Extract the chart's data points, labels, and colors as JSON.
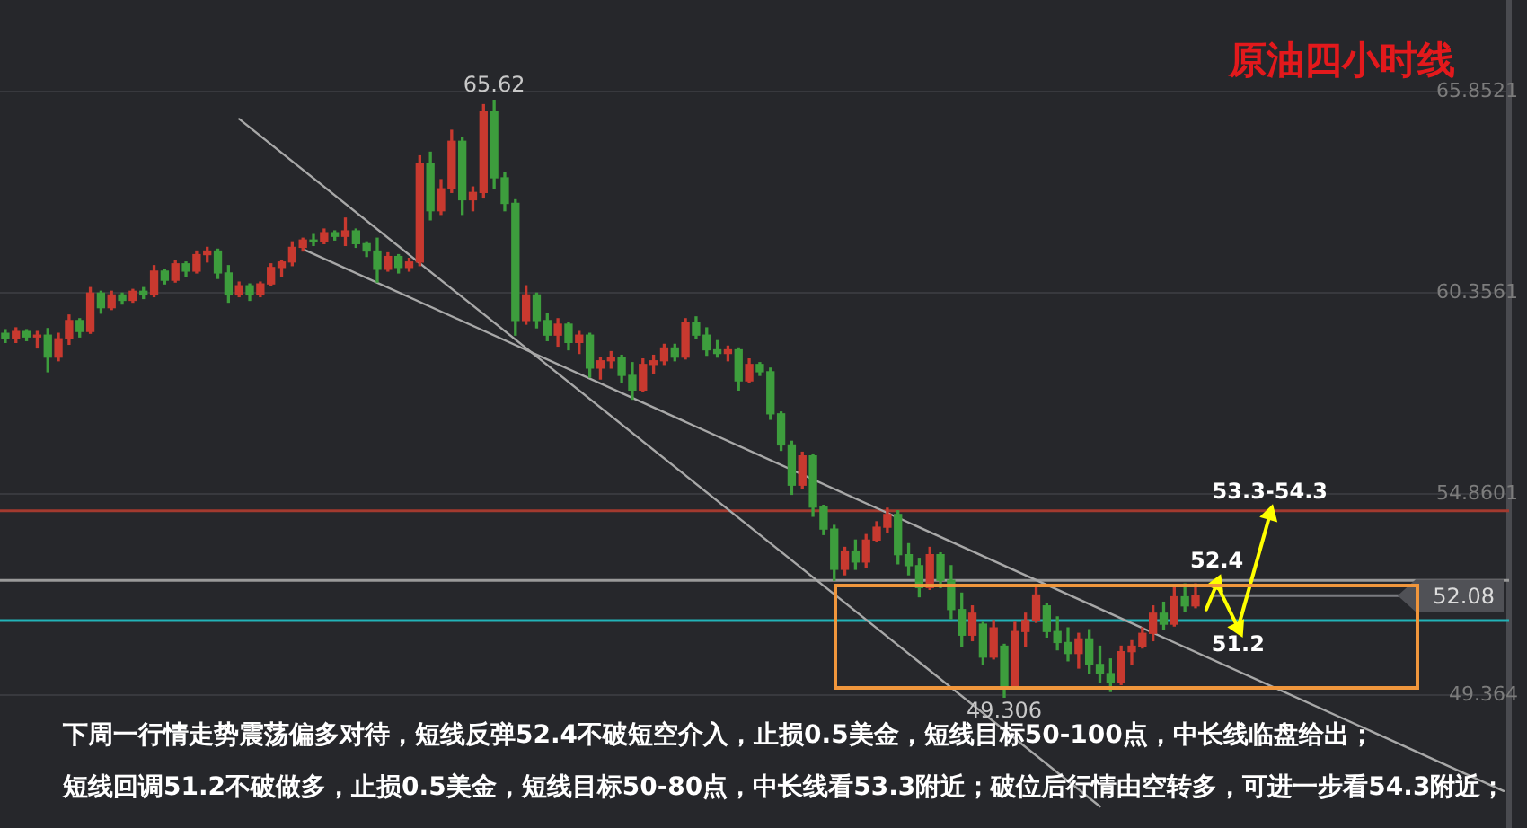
{
  "chart_data": {
    "type": "candlestick",
    "title": "原油四小时线",
    "categories": [
      null,
      null,
      null,
      null,
      null,
      null,
      null,
      null,
      null,
      null,
      null,
      null,
      null,
      null,
      null,
      null,
      null,
      null,
      null,
      null,
      null,
      null,
      null,
      null,
      null,
      null,
      null,
      null,
      null,
      null,
      null,
      null,
      null,
      null,
      null,
      null,
      null,
      null,
      null,
      null,
      null,
      null,
      null,
      null,
      null,
      null,
      null,
      null,
      null,
      null,
      null,
      null,
      null,
      null,
      null,
      null,
      null,
      null,
      null,
      null,
      null,
      null,
      null,
      null,
      null,
      null,
      null,
      null,
      null,
      null,
      null,
      null,
      null,
      null,
      null,
      null,
      null,
      null,
      null,
      null,
      null,
      null,
      null,
      null,
      null,
      null,
      null,
      null,
      null,
      null,
      null,
      null,
      null,
      null,
      null,
      null,
      null,
      null,
      null,
      null,
      null,
      null,
      null,
      null,
      null,
      null,
      null,
      null,
      null,
      null,
      null,
      null,
      null,
      null,
      null,
      null,
      null,
      null,
      null,
      null,
      null,
      null,
      null,
      null,
      null,
      null,
      null,
      null,
      null,
      null,
      null,
      null,
      null,
      null,
      null,
      null,
      null,
      null,
      null,
      null,
      null,
      null
    ],
    "ohlc": [
      [
        59.25,
        59.35,
        59.0,
        59.1
      ],
      [
        59.1,
        59.4,
        59.0,
        59.3
      ],
      [
        59.3,
        59.35,
        59.05,
        59.15
      ],
      [
        59.15,
        59.3,
        58.85,
        59.2
      ],
      [
        59.2,
        59.38,
        58.2,
        58.6
      ],
      [
        58.6,
        59.25,
        58.5,
        59.1
      ],
      [
        59.1,
        59.75,
        58.95,
        59.6
      ],
      [
        59.6,
        59.65,
        59.15,
        59.3
      ],
      [
        59.3,
        60.5,
        59.25,
        60.35
      ],
      [
        60.35,
        60.4,
        59.8,
        59.95
      ],
      [
        59.95,
        60.4,
        59.9,
        60.3
      ],
      [
        60.3,
        60.35,
        60.05,
        60.15
      ],
      [
        60.15,
        60.45,
        60.1,
        60.4
      ],
      [
        60.4,
        60.5,
        60.2,
        60.3
      ],
      [
        60.3,
        61.1,
        60.25,
        60.95
      ],
      [
        60.95,
        61.0,
        60.6,
        60.7
      ],
      [
        60.7,
        61.25,
        60.65,
        61.15
      ],
      [
        61.15,
        61.2,
        60.8,
        60.95
      ],
      [
        60.95,
        61.5,
        60.9,
        61.4
      ],
      [
        61.4,
        61.6,
        61.2,
        61.5
      ],
      [
        61.5,
        61.55,
        60.75,
        60.9
      ],
      [
        60.9,
        61.1,
        60.1,
        60.3
      ],
      [
        60.3,
        60.65,
        60.25,
        60.55
      ],
      [
        60.55,
        60.6,
        60.15,
        60.3
      ],
      [
        60.3,
        60.65,
        60.25,
        60.6
      ],
      [
        60.6,
        61.15,
        60.55,
        61.05
      ],
      [
        61.05,
        61.25,
        60.8,
        61.2
      ],
      [
        61.2,
        61.75,
        61.1,
        61.6
      ],
      [
        61.6,
        61.85,
        61.5,
        61.8
      ],
      [
        61.8,
        61.95,
        61.65,
        61.75
      ],
      [
        61.75,
        62.1,
        61.7,
        62.0
      ],
      [
        62.0,
        62.05,
        61.8,
        61.9
      ],
      [
        61.9,
        62.4,
        61.65,
        62.05
      ],
      [
        62.05,
        62.1,
        61.6,
        61.7
      ],
      [
        61.7,
        61.75,
        61.35,
        61.5
      ],
      [
        61.5,
        61.85,
        60.65,
        61.0
      ],
      [
        61.0,
        61.45,
        60.95,
        61.35
      ],
      [
        61.35,
        61.4,
        60.9,
        61.05
      ],
      [
        61.05,
        61.3,
        60.95,
        61.2
      ],
      [
        61.2,
        64.1,
        61.1,
        63.9
      ],
      [
        63.9,
        64.2,
        62.35,
        62.6
      ],
      [
        62.6,
        63.45,
        62.5,
        63.2
      ],
      [
        63.2,
        64.8,
        63.1,
        64.5
      ],
      [
        64.5,
        64.6,
        62.5,
        62.9
      ],
      [
        62.9,
        63.25,
        62.6,
        63.1
      ],
      [
        63.1,
        65.5,
        62.95,
        65.3
      ],
      [
        65.3,
        65.62,
        63.2,
        63.5
      ],
      [
        63.5,
        63.65,
        62.6,
        62.8
      ],
      [
        62.8,
        62.9,
        59.2,
        59.6
      ],
      [
        59.6,
        60.55,
        59.5,
        60.3
      ],
      [
        60.3,
        60.35,
        59.4,
        59.6
      ],
      [
        59.6,
        59.8,
        59.05,
        59.2
      ],
      [
        59.2,
        59.65,
        58.9,
        59.5
      ],
      [
        59.5,
        59.55,
        58.8,
        59.0
      ],
      [
        59.0,
        59.3,
        58.7,
        59.2
      ],
      [
        59.2,
        59.25,
        58.05,
        58.3
      ],
      [
        58.3,
        58.6,
        58.0,
        58.5
      ],
      [
        58.5,
        58.75,
        58.3,
        58.6
      ],
      [
        58.6,
        58.65,
        57.9,
        58.1
      ],
      [
        58.1,
        58.45,
        57.45,
        57.7
      ],
      [
        57.7,
        58.55,
        57.65,
        58.4
      ],
      [
        58.4,
        58.65,
        58.15,
        58.5
      ],
      [
        58.5,
        58.95,
        58.4,
        58.85
      ],
      [
        58.85,
        58.95,
        58.5,
        58.6
      ],
      [
        58.6,
        59.65,
        58.55,
        59.55
      ],
      [
        59.55,
        59.7,
        59.1,
        59.2
      ],
      [
        59.2,
        59.4,
        58.65,
        58.8
      ],
      [
        58.8,
        59.05,
        58.6,
        58.7
      ],
      [
        58.7,
        58.9,
        58.5,
        58.8
      ],
      [
        58.8,
        58.85,
        57.7,
        57.95
      ],
      [
        57.95,
        58.55,
        57.9,
        58.4
      ],
      [
        58.4,
        58.45,
        58.1,
        58.2
      ],
      [
        58.2,
        58.3,
        56.9,
        57.05
      ],
      [
        57.05,
        57.1,
        56.05,
        56.2
      ],
      [
        56.2,
        56.3,
        54.85,
        55.1
      ],
      [
        55.1,
        56.0,
        55.0,
        55.9
      ],
      [
        55.9,
        55.95,
        54.25,
        54.5
      ],
      [
        54.5,
        54.55,
        53.75,
        53.9
      ],
      [
        53.9,
        54.0,
        52.5,
        52.8
      ],
      [
        52.8,
        53.4,
        52.65,
        53.3
      ],
      [
        53.3,
        53.6,
        52.8,
        53.0
      ],
      [
        53.0,
        53.75,
        52.85,
        53.6
      ],
      [
        53.6,
        54.1,
        53.55,
        53.95
      ],
      [
        53.95,
        54.47,
        53.8,
        54.3
      ],
      [
        54.3,
        54.4,
        52.95,
        53.2
      ],
      [
        53.2,
        53.5,
        52.65,
        52.9
      ],
      [
        52.9,
        53.1,
        52.05,
        52.3
      ],
      [
        52.3,
        53.4,
        52.25,
        53.2
      ],
      [
        53.2,
        53.25,
        52.3,
        52.5
      ],
      [
        52.5,
        52.9,
        51.45,
        51.7
      ],
      [
        51.7,
        52.15,
        50.7,
        51.0
      ],
      [
        51.0,
        51.8,
        50.85,
        51.6
      ],
      [
        51.3,
        51.35,
        50.2,
        50.4
      ],
      [
        50.4,
        51.4,
        50.35,
        51.2
      ],
      [
        50.7,
        50.75,
        49.306,
        49.6
      ],
      [
        49.6,
        51.35,
        49.55,
        51.1
      ],
      [
        51.1,
        51.6,
        50.7,
        51.4
      ],
      [
        51.4,
        52.3,
        51.35,
        52.1
      ],
      [
        51.8,
        51.85,
        50.95,
        51.1
      ],
      [
        51.1,
        51.5,
        50.6,
        50.8
      ],
      [
        50.8,
        51.2,
        50.3,
        50.5
      ],
      [
        50.5,
        51.05,
        50.1,
        50.9
      ],
      [
        50.9,
        51.15,
        49.95,
        50.2
      ],
      [
        50.2,
        50.7,
        49.7,
        49.95
      ],
      [
        49.95,
        50.35,
        49.46,
        49.7
      ],
      [
        49.7,
        50.7,
        49.65,
        50.55
      ],
      [
        50.55,
        50.85,
        50.2,
        50.7
      ],
      [
        50.7,
        51.2,
        50.65,
        51.05
      ],
      [
        51.05,
        51.8,
        50.85,
        51.6
      ],
      [
        51.6,
        51.9,
        51.15,
        51.3
      ],
      [
        51.3,
        52.3,
        51.25,
        52.05
      ],
      [
        52.05,
        52.4,
        51.65,
        51.8
      ],
      [
        51.8,
        52.4,
        51.75,
        52.08
      ],
      null,
      null,
      null,
      null,
      null,
      null,
      null,
      null,
      null,
      null,
      null,
      null,
      null,
      null,
      null,
      null,
      null,
      null,
      null,
      null,
      null,
      null,
      null,
      null,
      null,
      null,
      null,
      null,
      null
    ],
    "colors": [
      "#3d9d3d",
      "#c8392f",
      "#3d9d3d",
      "#c8392f",
      "#3d9d3d",
      "#c8392f",
      "#c8392f",
      "#3d9d3d",
      "#c8392f",
      "#3d9d3d",
      "#c8392f",
      "#3d9d3d",
      "#c8392f",
      "#3d9d3d",
      "#c8392f",
      "#3d9d3d",
      "#c8392f",
      "#3d9d3d",
      "#c8392f",
      "#c8392f",
      "#3d9d3d",
      "#3d9d3d",
      "#c8392f",
      "#3d9d3d",
      "#c8392f",
      "#c8392f",
      "#c8392f",
      "#c8392f",
      "#c8392f",
      "#3d9d3d",
      "#c8392f",
      "#3d9d3d",
      "#c8392f",
      "#3d9d3d",
      "#3d9d3d",
      "#3d9d3d",
      "#c8392f",
      "#3d9d3d",
      "#c8392f",
      "#c8392f",
      "#3d9d3d",
      "#c8392f",
      "#c8392f",
      "#3d9d3d",
      "#c8392f",
      "#c8392f",
      "#3d9d3d",
      "#3d9d3d",
      "#3d9d3d",
      "#c8392f",
      "#3d9d3d",
      "#3d9d3d",
      "#c8392f",
      "#3d9d3d",
      "#c8392f",
      "#3d9d3d",
      "#c8392f",
      "#c8392f",
      "#3d9d3d",
      "#3d9d3d",
      "#c8392f",
      "#c8392f",
      "#c8392f",
      "#3d9d3d",
      "#c8392f",
      "#3d9d3d",
      "#3d9d3d",
      "#3d9d3d",
      "#c8392f",
      "#3d9d3d",
      "#c8392f",
      "#3d9d3d",
      "#3d9d3d",
      "#3d9d3d",
      "#3d9d3d",
      "#c8392f",
      "#3d9d3d",
      "#3d9d3d",
      "#3d9d3d",
      "#c8392f",
      "#3d9d3d",
      "#c8392f",
      "#c8392f",
      "#c8392f",
      "#3d9d3d",
      "#3d9d3d",
      "#3d9d3d",
      "#c8392f",
      "#3d9d3d",
      "#3d9d3d",
      "#3d9d3d",
      "#c8392f",
      "#3d9d3d",
      "#c8392f",
      "#3d9d3d",
      "#c8392f",
      "#c8392f",
      "#c8392f",
      "#3d9d3d",
      "#3d9d3d",
      "#3d9d3d",
      "#c8392f",
      "#3d9d3d",
      "#3d9d3d",
      "#3d9d3d",
      "#c8392f",
      "#c8392f",
      "#c8392f",
      "#c8392f",
      "#3d9d3d",
      "#c8392f",
      "#3d9d3d",
      "#c8392f",
      null,
      null,
      null,
      null,
      null,
      null,
      null,
      null,
      null,
      null,
      null,
      null,
      null,
      null,
      null,
      null,
      null,
      null,
      null,
      null,
      null,
      null,
      null,
      null,
      null,
      null,
      null,
      null,
      null
    ],
    "series": [
      {
        "type": "line",
        "color": "#a8a8a8",
        "values": [
          null,
          null,
          null,
          null,
          null,
          null,
          null,
          null,
          null,
          null,
          null,
          null,
          null,
          null,
          null,
          null,
          null,
          null,
          null,
          null,
          null,
          null,
          65.11,
          null,
          null,
          null,
          null,
          null,
          null,
          null,
          null,
          null,
          null,
          null,
          null,
          null,
          null,
          null,
          null,
          null,
          null,
          null,
          null,
          null,
          null,
          null,
          null,
          null,
          null,
          null,
          null,
          null,
          null,
          null,
          null,
          null,
          null,
          null,
          null,
          null,
          null,
          null,
          null,
          null,
          null,
          null,
          null,
          null,
          null,
          null,
          null,
          null,
          null,
          null,
          null,
          null,
          null,
          null,
          null,
          null,
          null,
          null,
          null,
          null,
          null,
          null,
          null,
          null,
          null,
          null,
          null,
          null,
          null,
          null,
          null,
          null,
          null,
          null,
          null,
          null,
          null,
          null,
          null,
          46.32,
          null,
          null,
          null,
          null,
          null,
          null,
          null,
          null,
          null,
          null,
          null,
          null,
          null,
          null,
          null,
          null,
          null,
          null,
          null,
          null,
          null,
          null,
          null,
          null,
          null,
          null,
          null,
          null,
          null,
          null,
          null,
          null,
          null,
          null,
          null,
          null,
          null,
          null
        ]
      },
      {
        "type": "line",
        "color": "#a8a8a8",
        "values": [
          null,
          null,
          null,
          null,
          null,
          null,
          null,
          null,
          null,
          null,
          null,
          null,
          null,
          null,
          null,
          null,
          null,
          null,
          null,
          null,
          null,
          null,
          null,
          null,
          null,
          null,
          null,
          null,
          61.55,
          null,
          null,
          null,
          null,
          null,
          null,
          null,
          null,
          null,
          null,
          null,
          null,
          null,
          null,
          null,
          null,
          null,
          null,
          null,
          null,
          null,
          null,
          null,
          null,
          null,
          null,
          null,
          null,
          null,
          null,
          null,
          null,
          null,
          null,
          null,
          null,
          null,
          null,
          null,
          null,
          null,
          null,
          null,
          null,
          null,
          null,
          null,
          null,
          null,
          null,
          null,
          null,
          null,
          null,
          null,
          null,
          null,
          null,
          null,
          null,
          null,
          null,
          null,
          null,
          null,
          null,
          null,
          null,
          null,
          null,
          null,
          null,
          null,
          null,
          null,
          null,
          null,
          null,
          null,
          null,
          null,
          null,
          null,
          null,
          null,
          null,
          null,
          null,
          null,
          null,
          null,
          null,
          null,
          null,
          null,
          null,
          null,
          null,
          null,
          null,
          null,
          null,
          null,
          null,
          null,
          null,
          null,
          null,
          null,
          null,
          null,
          null,
          46.74
        ]
      },
      {
        "type": "line",
        "color": "#ffff00",
        "marker": "triangle",
        "values": [
          null,
          null,
          null,
          null,
          null,
          null,
          null,
          null,
          null,
          null,
          null,
          null,
          null,
          null,
          null,
          null,
          null,
          null,
          null,
          null,
          null,
          null,
          null,
          null,
          null,
          null,
          null,
          null,
          null,
          null,
          null,
          null,
          null,
          null,
          null,
          null,
          null,
          null,
          null,
          null,
          null,
          null,
          null,
          null,
          null,
          null,
          null,
          null,
          null,
          null,
          null,
          null,
          null,
          null,
          null,
          null,
          null,
          null,
          null,
          null,
          null,
          null,
          null,
          null,
          null,
          null,
          null,
          null,
          null,
          null,
          null,
          null,
          null,
          null,
          null,
          null,
          null,
          null,
          null,
          null,
          null,
          null,
          null,
          null,
          null,
          null,
          null,
          null,
          null,
          null,
          null,
          null,
          null,
          null,
          null,
          null,
          null,
          null,
          null,
          null,
          null,
          null,
          null,
          null,
          null,
          null,
          null,
          null,
          null,
          null,
          null,
          null,
          null,
          51.7,
          52.4,
          null,
          51.2,
          null,
          null,
          54.3,
          null,
          null,
          null,
          null,
          null,
          null,
          null,
          null,
          null,
          null,
          null,
          null,
          null,
          null,
          null,
          null,
          null,
          null,
          null,
          null,
          null,
          null
        ],
        "value_labels": [
          null,
          null,
          null,
          null,
          null,
          null,
          null,
          null,
          null,
          null,
          null,
          null,
          null,
          null,
          null,
          null,
          null,
          null,
          null,
          null,
          null,
          null,
          null,
          null,
          null,
          null,
          null,
          null,
          null,
          null,
          null,
          null,
          null,
          null,
          null,
          null,
          null,
          null,
          null,
          null,
          null,
          null,
          null,
          null,
          null,
          null,
          null,
          null,
          null,
          null,
          null,
          null,
          null,
          null,
          null,
          null,
          null,
          null,
          null,
          null,
          null,
          null,
          null,
          null,
          null,
          null,
          null,
          null,
          null,
          null,
          null,
          null,
          null,
          null,
          null,
          null,
          null,
          null,
          null,
          null,
          null,
          null,
          null,
          null,
          null,
          null,
          null,
          null,
          null,
          null,
          null,
          null,
          null,
          null,
          null,
          null,
          null,
          null,
          null,
          null,
          null,
          null,
          null,
          null,
          null,
          null,
          null,
          null,
          null,
          null,
          null,
          null,
          null,
          null,
          "52.4",
          null,
          "51.2",
          null,
          null,
          "53.3-54.3",
          null,
          null,
          null,
          null,
          null,
          null,
          null,
          null,
          null,
          null,
          null,
          null,
          null,
          null,
          null,
          null,
          null,
          null,
          null,
          null,
          null,
          null
        ]
      }
    ],
    "ylim": [
      45.73,
      68.36
    ],
    "yticks": [
      65.8521,
      60.3561,
      54.8601,
      49.364
    ],
    "grid": "y",
    "tick_labels": "y",
    "ref_lines": [
      {
        "axis": "y",
        "value": 54.4,
        "color": "#a33a2f"
      },
      {
        "axis": "y",
        "value": 52.5,
        "color": "#9a9a9a"
      },
      {
        "axis": "y",
        "value": 51.4,
        "color": "#22b3b8"
      },
      {
        "axis": "y",
        "value": 52.08,
        "label": "52.08",
        "color": "#7a7b80"
      }
    ],
    "annotations": [
      {
        "text": "65.62",
        "y": 65.62
      },
      {
        "text": "49.306",
        "y": 49.306
      },
      "下周一行情走势震荡偏多对待，短线反弹52.4不破短空介入，止损0.5美金，短线目标50-100点，中长线临盘给出；",
      "短线回调51.2不破做多，止损0.5美金，短线目标50-80点，中长线看53.3附近；破位后行情由空转多，可进一步看54.3附近；"
    ]
  }
}
